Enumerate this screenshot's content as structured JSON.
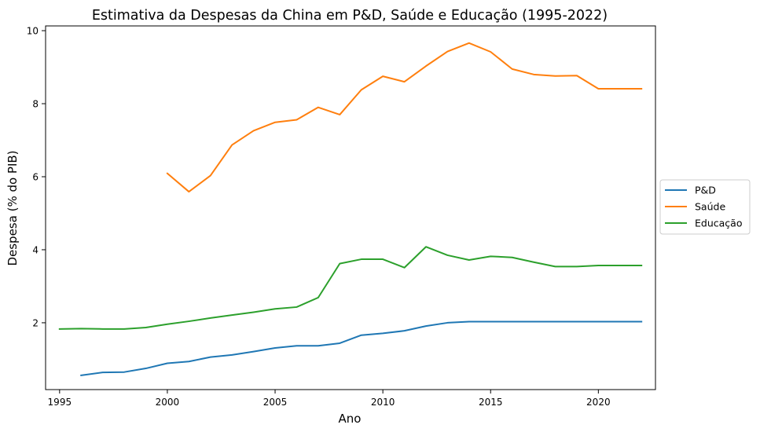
{
  "chart_data": {
    "type": "line",
    "title": "Estimativa da Despesas da China em P&D, Saúde e Educação (1995-2022)",
    "xlabel": "Ano",
    "ylabel": "Despesa (% do PIB)",
    "xlim": [
      1994.35,
      2022.65
    ],
    "ylim": [
      0.17,
      10.13
    ],
    "xticks": [
      1995,
      2000,
      2005,
      2010,
      2015,
      2020
    ],
    "yticks": [
      2,
      4,
      6,
      8,
      10
    ],
    "grid": false,
    "legend_position": "center-right outside",
    "series": [
      {
        "name": "P&D",
        "color": "#1f77b4",
        "x": [
          1996,
          1997,
          1998,
          1999,
          2000,
          2001,
          2002,
          2003,
          2004,
          2005,
          2006,
          2007,
          2008,
          2009,
          2010,
          2011,
          2012,
          2013,
          2014,
          2015,
          2016,
          2017,
          2018,
          2019,
          2020,
          2021,
          2022
        ],
        "y": [
          0.56,
          0.64,
          0.65,
          0.75,
          0.89,
          0.94,
          1.06,
          1.12,
          1.21,
          1.31,
          1.37,
          1.37,
          1.44,
          1.66,
          1.71,
          1.78,
          1.91,
          2.0,
          2.03,
          2.03,
          2.03,
          2.03,
          2.03,
          2.03,
          2.03,
          2.03,
          2.03
        ]
      },
      {
        "name": "Saúde",
        "color": "#ff7f0e",
        "x": [
          2000,
          2001,
          2002,
          2003,
          2004,
          2005,
          2006,
          2007,
          2008,
          2009,
          2010,
          2011,
          2012,
          2013,
          2014,
          2015,
          2016,
          2017,
          2018,
          2019,
          2020,
          2021,
          2022
        ],
        "y": [
          6.09,
          5.59,
          6.03,
          6.87,
          7.26,
          7.49,
          7.56,
          7.9,
          7.7,
          8.38,
          8.75,
          8.6,
          9.03,
          9.43,
          9.66,
          9.42,
          8.95,
          8.8,
          8.76,
          8.77,
          8.41,
          8.41,
          8.41
        ]
      },
      {
        "name": "Educação",
        "color": "#2ca02c",
        "x": [
          1995,
          1996,
          1997,
          1998,
          1999,
          2000,
          2001,
          2002,
          2003,
          2004,
          2005,
          2006,
          2007,
          2008,
          2009,
          2010,
          2011,
          2012,
          2013,
          2014,
          2015,
          2016,
          2017,
          2018,
          2019,
          2020,
          2021,
          2022
        ],
        "y": [
          1.83,
          1.84,
          1.83,
          1.83,
          1.87,
          1.96,
          2.04,
          2.13,
          2.21,
          2.29,
          2.38,
          2.43,
          2.69,
          3.62,
          3.74,
          3.74,
          3.51,
          4.08,
          3.85,
          3.72,
          3.82,
          3.79,
          3.66,
          3.54,
          3.54,
          3.57,
          3.57,
          3.57
        ]
      }
    ]
  }
}
